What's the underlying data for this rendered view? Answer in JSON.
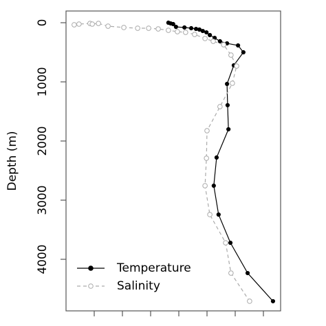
{
  "chart_data": {
    "type": "line",
    "y_label": "Depth (m)",
    "xlim": [
      0,
      7.61
    ],
    "xticks": [
      1,
      2,
      3,
      4,
      5,
      6,
      7
    ],
    "ylim": [
      4872,
      -198
    ],
    "yticks": [
      0,
      1000,
      2000,
      3000,
      4000
    ],
    "legend": "bottom-left",
    "series": [
      {
        "name": "Temperature",
        "color": "#000000",
        "marker": "filled",
        "linestyle": "solid",
        "x": [
          3.63,
          3.71,
          3.8,
          3.9,
          4.2,
          4.44,
          4.61,
          4.73,
          4.85,
          4.98,
          5.1,
          5.27,
          5.46,
          5.71,
          6.1,
          6.29,
          5.95,
          5.71,
          5.73,
          5.76,
          5.34,
          5.24,
          5.41,
          5.83,
          6.44,
          7.34
        ],
        "values": [
          0,
          12,
          23,
          70,
          81,
          93,
          105,
          116,
          140,
          163,
          209,
          256,
          314,
          349,
          384,
          500,
          721,
          1035,
          1395,
          1802,
          2279,
          2756,
          3244,
          3721,
          4233,
          4709
        ]
      },
      {
        "name": "Salinity",
        "color": "#aaaaaa",
        "marker": "open",
        "linestyle": "dashed",
        "x": [
          0.29,
          0.46,
          0.85,
          0.93,
          1.15,
          1.49,
          2.05,
          2.54,
          2.93,
          3.27,
          3.63,
          3.95,
          4.24,
          4.56,
          4.93,
          5.22,
          5.59,
          5.85,
          6.05,
          5.9,
          5.46,
          5.0,
          4.98,
          4.93,
          5.1,
          5.66,
          5.85,
          6.51
        ],
        "values": [
          35,
          23,
          12,
          23,
          12,
          58,
          81,
          93,
          93,
          105,
          128,
          151,
          163,
          198,
          267,
          314,
          372,
          547,
          733,
          1023,
          1419,
          1826,
          2291,
          2756,
          3244,
          3721,
          4233,
          4709
        ]
      }
    ]
  }
}
